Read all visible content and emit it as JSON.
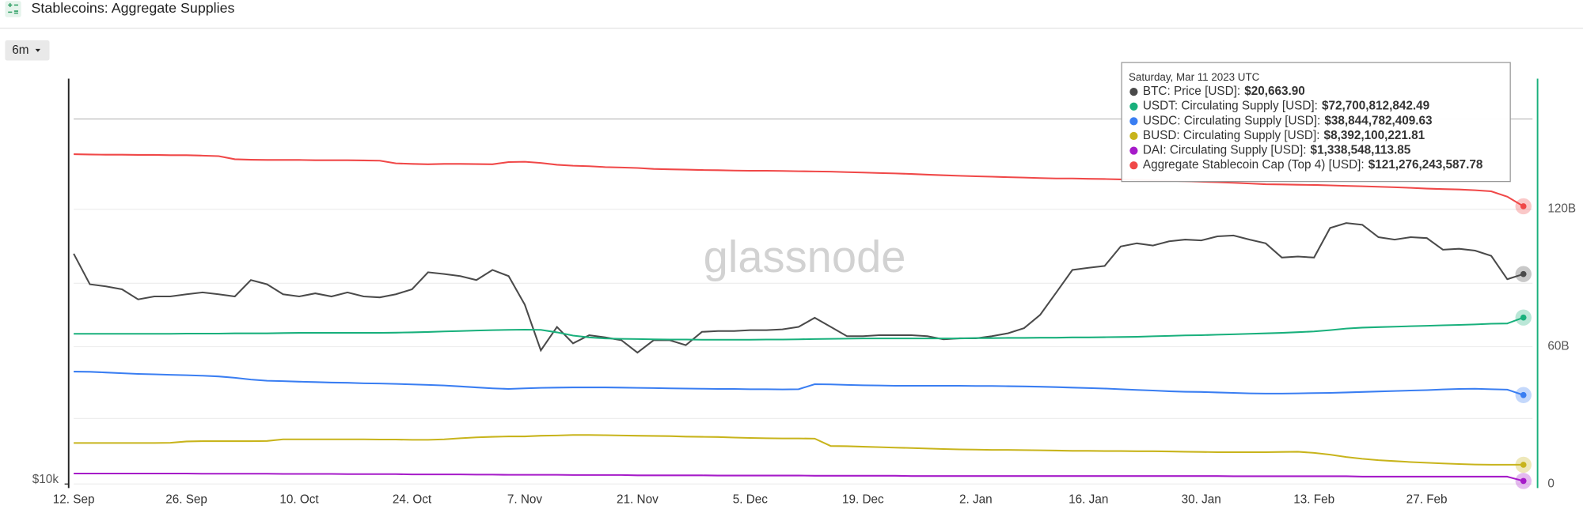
{
  "header": {
    "title": "Stablecoins: Aggregate Supplies",
    "range_button": "6m"
  },
  "watermark": "glassnode",
  "tooltip": {
    "title": "Saturday, Mar 11 2023 UTC",
    "separator": ":",
    "values": [
      "$20,663.90",
      "$72,700,812,842.49",
      "$38,844,782,409.63",
      "$8,392,100,221.81",
      "$1,338,548,113.85",
      "$121,276,243,587.78"
    ]
  },
  "chart_data": {
    "type": "line",
    "grid": true,
    "yscale": "log",
    "categories": [
      "12. Sep",
      null,
      null,
      null,
      null,
      null,
      null,
      "26. Sep",
      null,
      null,
      null,
      null,
      null,
      null,
      "10. Oct",
      null,
      null,
      null,
      null,
      null,
      null,
      "24. Oct",
      null,
      null,
      null,
      null,
      null,
      null,
      "7. Nov",
      null,
      null,
      null,
      null,
      null,
      null,
      "21. Nov",
      null,
      null,
      null,
      null,
      null,
      null,
      "5. Dec",
      null,
      null,
      null,
      null,
      null,
      null,
      "19. Dec",
      null,
      null,
      null,
      null,
      null,
      null,
      "2. Jan",
      null,
      null,
      null,
      null,
      null,
      null,
      "16. Jan",
      null,
      null,
      null,
      null,
      null,
      null,
      "30. Jan",
      null,
      null,
      null,
      null,
      null,
      null,
      "13. Feb",
      null,
      null,
      null,
      null,
      null,
      null,
      "27. Feb",
      null,
      null,
      null,
      null,
      null,
      null
    ],
    "ylim": [
      10000,
      40600
    ],
    "yticks": [
      {
        "value": 10000,
        "label": "$10k"
      }
    ],
    "y2lim": [
      0,
      177
    ],
    "y2ticks": [
      0,
      {
        "value": 60,
        "label": "60B"
      },
      {
        "value": 120,
        "label": "120B"
      }
    ],
    "series": [
      {
        "name": "BTC: Price [USD]",
        "color": "#4a4a4a",
        "axis": "y",
        "values": [
          22170,
          19950,
          19800,
          19600,
          18930,
          19120,
          19120,
          19270,
          19390,
          19270,
          19120,
          20240,
          19950,
          19270,
          19120,
          19330,
          19120,
          19390,
          19120,
          19060,
          19270,
          19600,
          20790,
          20670,
          20520,
          20240,
          20960,
          20520,
          18590,
          15870,
          17210,
          16260,
          16730,
          16600,
          16440,
          15750,
          16440,
          16440,
          16160,
          16920,
          16970,
          16970,
          17020,
          17020,
          17070,
          17210,
          17770,
          17210,
          16670,
          16670,
          16730,
          16730,
          16730,
          16670,
          16490,
          16550,
          16550,
          16670,
          16840,
          17140,
          17950,
          19390,
          20960,
          21110,
          21250,
          22730,
          22980,
          22800,
          23140,
          23280,
          23210,
          23540,
          23610,
          23280,
          22980,
          21880,
          21950,
          21880,
          24230,
          24650,
          24500,
          23470,
          23280,
          23470,
          23400,
          22480,
          22550,
          22410,
          22010,
          20300,
          20663.9
        ]
      },
      {
        "name": "USDT: Circulating Supply [USD]",
        "color": "#19b07c",
        "axis": "y2",
        "values": [
          65.6,
          65.6,
          65.6,
          65.6,
          65.6,
          65.6,
          65.6,
          65.7,
          65.7,
          65.7,
          65.8,
          65.8,
          65.8,
          65.9,
          66.0,
          66.0,
          66.0,
          66.0,
          66.0,
          66.0,
          66.1,
          66.2,
          66.4,
          66.6,
          66.8,
          67.0,
          67.2,
          67.3,
          67.4,
          67.3,
          66.2,
          64.8,
          64.0,
          63.6,
          63.4,
          63.3,
          63.2,
          63.1,
          63.1,
          63.0,
          63.0,
          63.0,
          63.0,
          63.1,
          63.1,
          63.2,
          63.3,
          63.4,
          63.5,
          63.6,
          63.6,
          63.6,
          63.6,
          63.6,
          63.6,
          63.6,
          63.7,
          63.7,
          63.8,
          63.8,
          63.9,
          63.9,
          64.0,
          64.0,
          64.1,
          64.2,
          64.3,
          64.5,
          64.7,
          64.9,
          65.0,
          65.2,
          65.4,
          65.6,
          65.8,
          66.0,
          66.3,
          66.6,
          67.2,
          67.9,
          68.3,
          68.5,
          68.7,
          68.9,
          69.1,
          69.3,
          69.5,
          69.7,
          70.0,
          70.1,
          72.70081284249
        ]
      },
      {
        "name": "USDC: Circulating Supply [USD]",
        "color": "#3a7ef2",
        "axis": "y2",
        "values": [
          49.1,
          49.0,
          48.7,
          48.4,
          48.1,
          47.9,
          47.7,
          47.5,
          47.3,
          47.0,
          46.4,
          45.6,
          45.1,
          44.9,
          44.7,
          44.5,
          44.3,
          44.2,
          44.0,
          43.9,
          43.7,
          43.5,
          43.3,
          43.0,
          42.6,
          42.2,
          41.8,
          41.5,
          41.8,
          42.0,
          42.1,
          42.2,
          42.2,
          42.2,
          42.1,
          42.0,
          41.9,
          41.8,
          41.7,
          41.6,
          41.5,
          41.5,
          41.4,
          41.4,
          41.3,
          41.4,
          43.6,
          43.5,
          43.3,
          43.1,
          43.0,
          42.9,
          42.9,
          42.9,
          42.9,
          42.9,
          42.8,
          42.8,
          42.7,
          42.6,
          42.5,
          42.3,
          42.1,
          41.9,
          41.7,
          41.4,
          41.1,
          40.8,
          40.5,
          40.3,
          40.2,
          40.0,
          39.8,
          39.6,
          39.5,
          39.5,
          39.6,
          39.7,
          39.8,
          40.0,
          40.2,
          40.4,
          40.6,
          40.8,
          41.0,
          41.3,
          41.5,
          41.6,
          41.4,
          41.2,
          38.84478240963
        ]
      },
      {
        "name": "BUSD: Circulating Supply [USD]",
        "color": "#c8b41c",
        "axis": "y2",
        "values": [
          17.9,
          17.9,
          17.9,
          17.9,
          17.9,
          17.9,
          18.0,
          18.6,
          18.7,
          18.7,
          18.7,
          18.7,
          18.8,
          19.5,
          19.5,
          19.5,
          19.5,
          19.5,
          19.5,
          19.4,
          19.4,
          19.3,
          19.3,
          19.5,
          20.0,
          20.4,
          20.6,
          20.8,
          20.8,
          21.1,
          21.2,
          21.4,
          21.4,
          21.3,
          21.2,
          21.1,
          21.0,
          20.9,
          20.7,
          20.6,
          20.5,
          20.3,
          20.1,
          20.0,
          19.9,
          19.9,
          19.8,
          16.6,
          16.5,
          16.3,
          16.1,
          15.9,
          15.7,
          15.5,
          15.3,
          15.1,
          15.0,
          14.9,
          14.9,
          14.8,
          14.7,
          14.6,
          14.5,
          14.5,
          14.4,
          14.4,
          14.3,
          14.3,
          14.2,
          14.1,
          14.0,
          13.9,
          13.9,
          13.9,
          13.9,
          14.0,
          14.1,
          13.6,
          12.8,
          11.8,
          11.0,
          10.4,
          10.0,
          9.6,
          9.3,
          9.0,
          8.7,
          8.5,
          8.4,
          8.4,
          8.39210022181
        ]
      },
      {
        "name": "DAI: Circulating Supply [USD]",
        "color": "#a61bc9",
        "axis": "y2",
        "values": [
          4.6,
          4.6,
          4.6,
          4.6,
          4.6,
          4.6,
          4.6,
          4.6,
          4.5,
          4.5,
          4.5,
          4.5,
          4.5,
          4.4,
          4.4,
          4.4,
          4.4,
          4.3,
          4.3,
          4.3,
          4.3,
          4.2,
          4.2,
          4.2,
          4.2,
          4.1,
          4.1,
          4.0,
          4.0,
          4.0,
          4.0,
          3.9,
          3.9,
          3.9,
          3.9,
          3.8,
          3.8,
          3.8,
          3.8,
          3.8,
          3.7,
          3.7,
          3.7,
          3.7,
          3.7,
          3.7,
          3.6,
          3.6,
          3.6,
          3.6,
          3.6,
          3.6,
          3.5,
          3.5,
          3.5,
          3.5,
          3.5,
          3.5,
          3.5,
          3.5,
          3.5,
          3.5,
          3.5,
          3.5,
          3.5,
          3.5,
          3.5,
          3.5,
          3.5,
          3.5,
          3.5,
          3.5,
          3.4,
          3.4,
          3.4,
          3.4,
          3.4,
          3.4,
          3.4,
          3.4,
          3.2,
          3.2,
          3.2,
          3.2,
          3.2,
          3.2,
          3.2,
          3.2,
          3.2,
          3.2,
          1.33854811385
        ]
      },
      {
        "name": "Aggregate Stablecoin Cap (Top 4) [USD]",
        "color": "#f04848",
        "axis": "y2",
        "values": [
          144.0,
          143.9,
          143.8,
          143.8,
          143.7,
          143.7,
          143.6,
          143.6,
          143.4,
          143.2,
          141.8,
          141.6,
          141.5,
          141.5,
          141.5,
          141.4,
          141.4,
          141.4,
          141.3,
          141.2,
          140.0,
          139.8,
          139.6,
          139.8,
          139.8,
          139.7,
          139.6,
          140.6,
          140.7,
          140.2,
          139.4,
          139.0,
          138.8,
          138.4,
          138.2,
          138.0,
          137.6,
          137.4,
          137.3,
          137.1,
          137.0,
          136.9,
          136.8,
          136.8,
          136.7,
          136.6,
          136.5,
          136.4,
          136.2,
          136.0,
          135.8,
          135.6,
          135.4,
          135.1,
          134.8,
          134.6,
          134.4,
          134.2,
          134.0,
          133.8,
          133.6,
          133.4,
          133.4,
          133.3,
          133.2,
          133.0,
          132.8,
          132.6,
          132.4,
          132.2,
          132.0,
          131.8,
          131.5,
          131.2,
          130.9,
          130.8,
          130.7,
          130.6,
          130.4,
          130.2,
          130.0,
          129.8,
          129.6,
          129.3,
          129.0,
          128.8,
          128.6,
          128.3,
          127.8,
          125.5,
          121.27624358778
        ]
      }
    ]
  }
}
